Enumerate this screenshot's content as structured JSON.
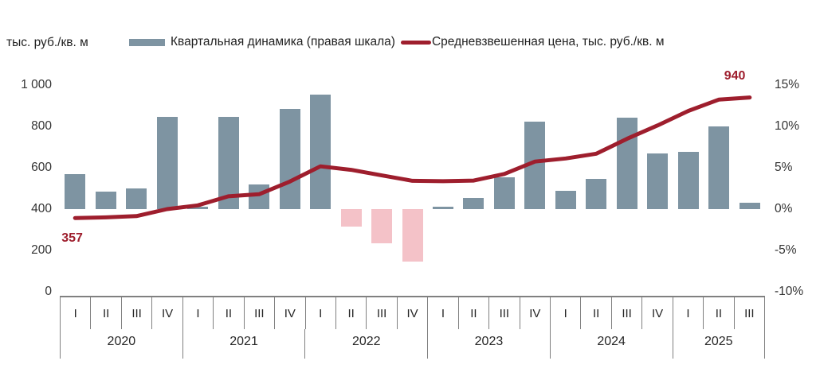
{
  "header": {
    "left_axis_title": "тыс. руб./кв. м",
    "legend": [
      {
        "type": "bar",
        "label": "Квартальная динамика (правая шкала)",
        "color": "#7E94A2"
      },
      {
        "type": "line",
        "label": "Средневзвешенная цена, тыс. руб./кв. м",
        "color": "#9E1E2D"
      }
    ]
  },
  "chart_data": {
    "type": "combo-bar-line",
    "grid": false,
    "legend_position": "top",
    "x": {
      "years": [
        {
          "label": "2020",
          "quarters": [
            "I",
            "II",
            "III",
            "IV"
          ]
        },
        {
          "label": "2021",
          "quarters": [
            "I",
            "II",
            "III",
            "IV"
          ]
        },
        {
          "label": "2022",
          "quarters": [
            "I",
            "II",
            "III",
            "IV"
          ]
        },
        {
          "label": "2023",
          "quarters": [
            "I",
            "II",
            "III",
            "IV"
          ]
        },
        {
          "label": "2024",
          "quarters": [
            "I",
            "II",
            "III",
            "IV"
          ]
        },
        {
          "label": "2025",
          "quarters": [
            "I",
            "II",
            "III"
          ]
        }
      ]
    },
    "series": [
      {
        "name": "Квартальная динамика (правая шкала)",
        "type": "bar",
        "axis": "right",
        "unit": "%",
        "values": [
          4.2,
          2.1,
          2.5,
          11.2,
          0.3,
          11.2,
          3.0,
          12.1,
          13.8,
          -2.1,
          -4.1,
          -6.3,
          0.3,
          1.3,
          3.8,
          10.6,
          2.2,
          3.7,
          11.1,
          6.7,
          6.9,
          10.0,
          0.8
        ],
        "color_positive": "#7E94A2",
        "color_negative": "#F4C2C8"
      },
      {
        "name": "Средневзвешенная цена, тыс. руб./кв. м",
        "type": "line",
        "axis": "left",
        "unit": "тыс. руб./кв. м",
        "values": [
          357,
          360,
          366,
          400,
          418,
          462,
          472,
          533,
          607,
          590,
          563,
          537,
          535,
          538,
          570,
          630,
          645,
          668,
          740,
          805,
          875,
          930,
          940
        ],
        "color": "#9E1E2D",
        "stroke_width": 5
      }
    ],
    "left_axis": {
      "title": "тыс. руб./кв. м",
      "min": 0,
      "max": 1000,
      "ticks": [
        {
          "v": 0,
          "label": "0"
        },
        {
          "v": 200,
          "label": "200"
        },
        {
          "v": 400,
          "label": "400"
        },
        {
          "v": 600,
          "label": "600"
        },
        {
          "v": 800,
          "label": "800"
        },
        {
          "v": 1000,
          "label": "1 000"
        }
      ]
    },
    "right_axis": {
      "min": -10,
      "max": 15,
      "ticks": [
        {
          "v": -10,
          "label": "-10%"
        },
        {
          "v": -5,
          "label": "-5%"
        },
        {
          "v": 0,
          "label": "0%"
        },
        {
          "v": 5,
          "label": "5%"
        },
        {
          "v": 10,
          "label": "10%"
        },
        {
          "v": 15,
          "label": "15%"
        }
      ]
    },
    "annotations": [
      {
        "text": "357",
        "index": 0,
        "placement": "below-start",
        "color": "#9E1E2D"
      },
      {
        "text": "940",
        "index": 22,
        "placement": "above-end",
        "color": "#9E1E2D"
      }
    ]
  }
}
